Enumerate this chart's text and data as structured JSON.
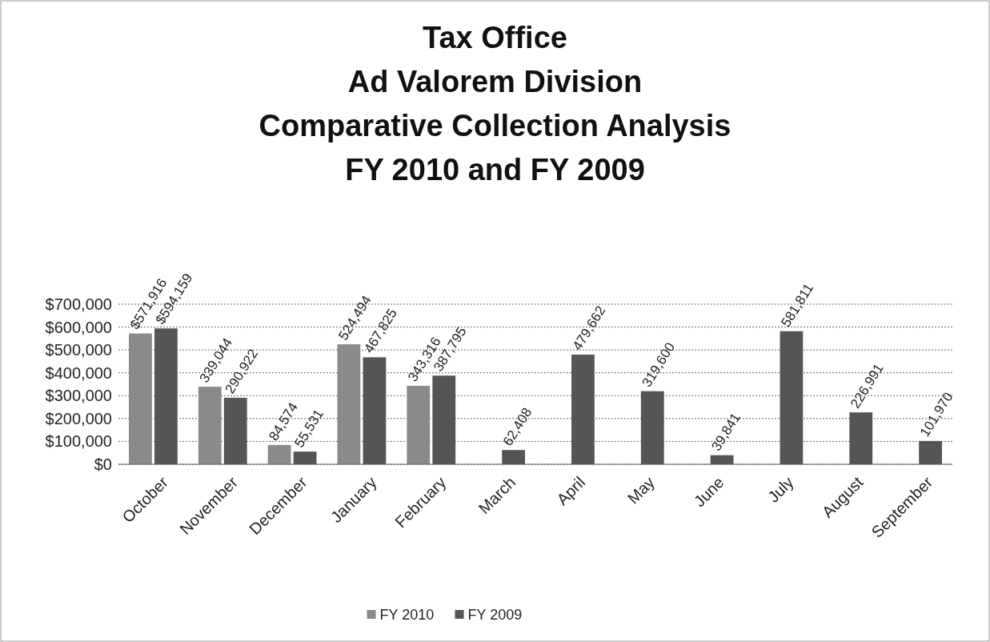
{
  "chart_data": {
    "type": "bar",
    "title": "Tax Office\nAd Valorem Division\nComparative Collection Analysis\nFY 2010 and FY 2009",
    "categories": [
      "October",
      "November",
      "December",
      "January",
      "February",
      "March",
      "April",
      "May",
      "June",
      "July",
      "August",
      "September"
    ],
    "series": [
      {
        "name": "FY 2010",
        "color": "#8a8a8a",
        "values": [
          571916,
          339044,
          84574,
          524494,
          343316,
          null,
          null,
          null,
          null,
          null,
          null,
          null
        ],
        "value_labels": [
          "$571,916",
          "339,044",
          "84,574",
          "524,494",
          "343,316",
          null,
          null,
          null,
          null,
          null,
          null,
          null
        ]
      },
      {
        "name": "FY 2009",
        "color": "#555555",
        "values": [
          594159,
          290922,
          55531,
          467825,
          387795,
          62408,
          479662,
          319600,
          39841,
          581811,
          226991,
          101970
        ],
        "value_labels": [
          "$594,159",
          "290,922",
          "55,531",
          "467,825",
          "387,795",
          "62,408",
          "479,662",
          "319,600",
          "39,841",
          "581,811",
          "226,991",
          "101,970"
        ]
      }
    ],
    "ylim": [
      0,
      700000
    ],
    "yticks": [
      {
        "value": 0,
        "label": "$0"
      },
      {
        "value": 100000,
        "label": "$100,000"
      },
      {
        "value": 200000,
        "label": "$200,000"
      },
      {
        "value": 300000,
        "label": "$300,000"
      },
      {
        "value": 400000,
        "label": "$400,000"
      },
      {
        "value": 500000,
        "label": "$500,000"
      },
      {
        "value": 600000,
        "label": "$600,000"
      },
      {
        "value": 700000,
        "label": "$700,000"
      }
    ],
    "grid": "y",
    "legend": "bottom"
  }
}
